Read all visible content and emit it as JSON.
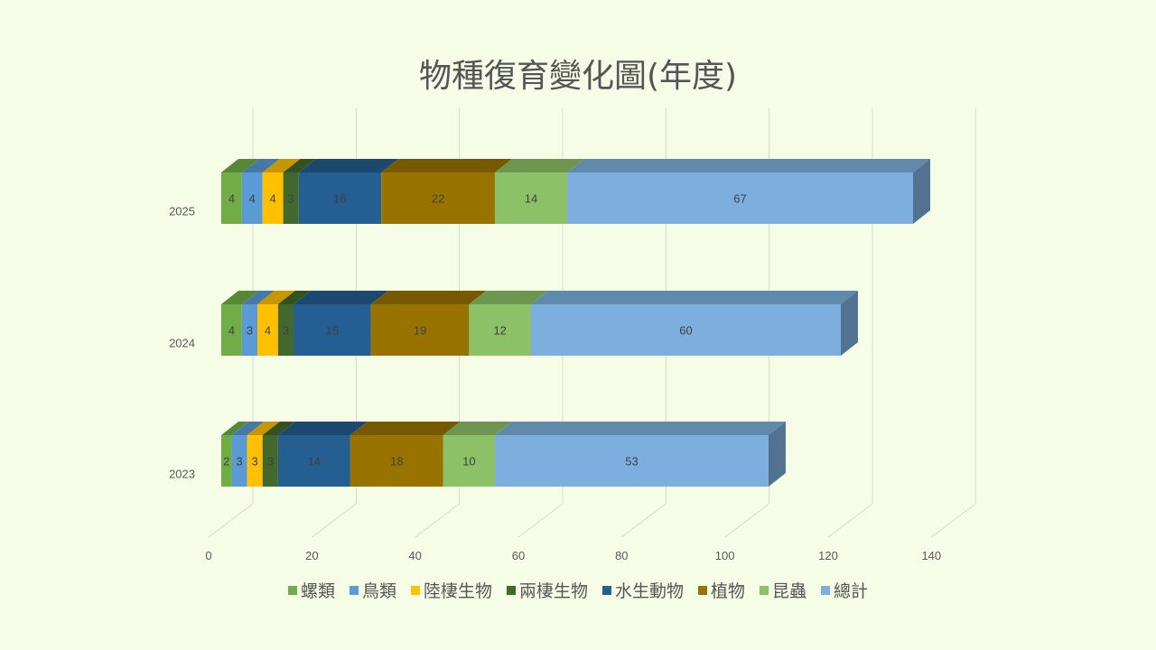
{
  "chart_data": {
    "type": "bar",
    "orientation": "horizontal",
    "stacked": true,
    "title": "物種復育變化圖(年度)",
    "categories": [
      "2023",
      "2024",
      "2025"
    ],
    "series": [
      {
        "name": "螺類",
        "values": [
          2,
          4,
          4
        ],
        "color": "#70ad47"
      },
      {
        "name": "鳥類",
        "values": [
          3,
          3,
          4
        ],
        "color": "#5b9bd5"
      },
      {
        "name": "陸棲生物",
        "values": [
          3,
          4,
          4
        ],
        "color": "#ffc000"
      },
      {
        "name": "兩棲生物",
        "values": [
          3,
          3,
          3
        ],
        "color": "#43682b"
      },
      {
        "name": "水生動物",
        "values": [
          14,
          15,
          16
        ],
        "color": "#255e91"
      },
      {
        "name": "植物",
        "values": [
          18,
          19,
          22
        ],
        "color": "#997300"
      },
      {
        "name": "昆蟲",
        "values": [
          10,
          12,
          14
        ],
        "color": "#8cc168"
      },
      {
        "name": "總計",
        "values": [
          53,
          60,
          67
        ],
        "color": "#7cafdd"
      }
    ],
    "xlim": [
      0,
      140
    ],
    "xticks": [
      "0",
      "20",
      "40",
      "60",
      "80",
      "100",
      "120",
      "140"
    ],
    "grid": true,
    "legend": "bottom"
  }
}
